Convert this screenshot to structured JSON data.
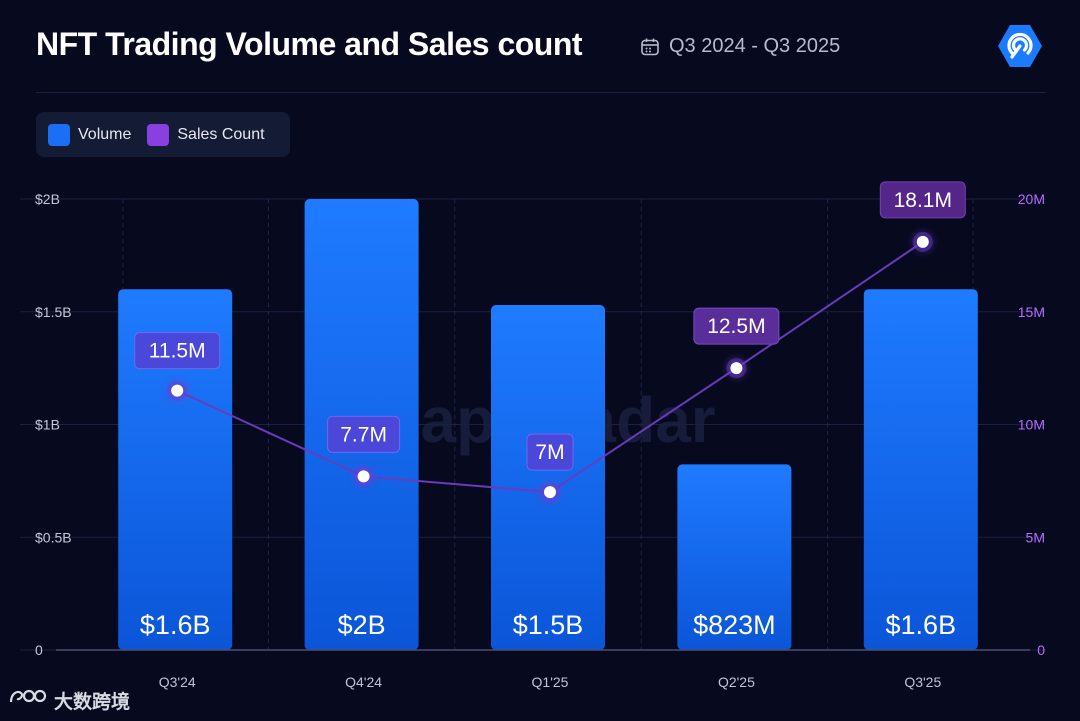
{
  "header": {
    "title": "NFT Trading Volume and Sales count",
    "date_range": "Q3 2024 - Q3 2025"
  },
  "legend": {
    "volume_label": "Volume",
    "sales_label": "Sales Count"
  },
  "watermark": {
    "text": "大数跨境",
    "background_brand": "DappRadar"
  },
  "colors": {
    "background": "#07091f",
    "bar_top": "#1f7bff",
    "bar_bottom": "#0b55d8",
    "volume_swatch": "#1a6ff5",
    "sales_swatch": "#8a3fe0",
    "line": "#6a3bbd",
    "axis_right_text": "#b66cff",
    "axis_left_text": "#c4c8d6"
  },
  "chart_data": {
    "type": "bar",
    "title": "NFT Trading Volume and Sales count",
    "categories": [
      "Q3'24",
      "Q4'24",
      "Q1'25",
      "Q2'25",
      "Q3'25"
    ],
    "series": [
      {
        "name": "Volume",
        "type": "bar",
        "axis": "left",
        "values": [
          1.6,
          2.0,
          1.53,
          0.823,
          1.6
        ],
        "labels": [
          "$1.6B",
          "$2B",
          "$1.5B",
          "$823M",
          "$1.6B"
        ]
      },
      {
        "name": "Sales Count",
        "type": "line",
        "axis": "right",
        "values": [
          11.5,
          7.7,
          7.0,
          12.5,
          18.1
        ],
        "labels": [
          "11.5M",
          "7.7M",
          "7M",
          "12.5M",
          "18.1M"
        ]
      }
    ],
    "y_left": {
      "ylim": [
        0,
        2
      ],
      "ticks": [
        0,
        0.5,
        1,
        1.5,
        2
      ],
      "tick_labels": [
        "0",
        "$0.5B",
        "$1B",
        "$1.5B",
        "$2B"
      ]
    },
    "y_right": {
      "ylim": [
        0,
        20
      ],
      "ticks": [
        0,
        5,
        10,
        15,
        20
      ],
      "tick_labels": [
        "0",
        "5M",
        "10M",
        "15M",
        "20M"
      ]
    },
    "grid": true,
    "legend_position": "top-left"
  }
}
